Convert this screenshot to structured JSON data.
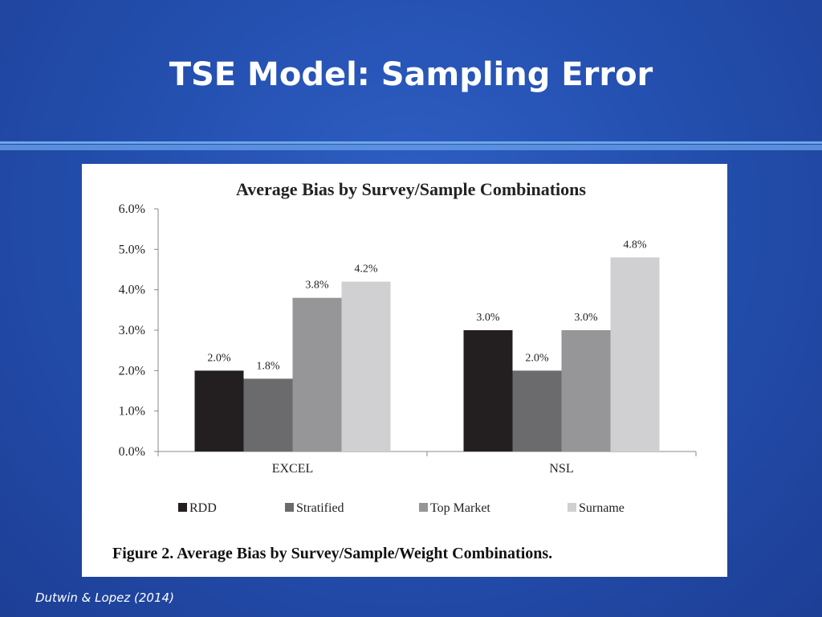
{
  "slide": {
    "title": "TSE Model: Sampling Error",
    "source": "Dutwin & Lopez (2014)"
  },
  "colors": {
    "background": "#2450b0",
    "title": "#ffffff",
    "rule": "#6fa6ec",
    "panel": "#ffffff"
  },
  "chart_data": {
    "type": "bar",
    "title": "Average Bias by Survey/Sample Combinations",
    "caption": "Figure 2.  Average Bias by Survey/Sample/Weight Combinations.",
    "categories": [
      "EXCEL",
      "NSL"
    ],
    "series": [
      {
        "name": "RDD",
        "values": [
          2.0,
          3.0
        ],
        "labels": [
          "2.0%",
          "3.0%"
        ],
        "color": "#231f20"
      },
      {
        "name": "Stratified",
        "values": [
          1.8,
          2.0
        ],
        "labels": [
          "1.8%",
          "2.0%"
        ],
        "color": "#6b6b6d"
      },
      {
        "name": "Top Market",
        "values": [
          3.8,
          3.0
        ],
        "labels": [
          "3.8%",
          "3.0%"
        ],
        "color": "#969698"
      },
      {
        "name": "Surname",
        "values": [
          4.2,
          4.8
        ],
        "labels": [
          "4.2%",
          "4.8%"
        ],
        "color": "#d0d0d2"
      }
    ],
    "yticks": [
      "0.0%",
      "1.0%",
      "2.0%",
      "3.0%",
      "4.0%",
      "5.0%",
      "6.0%"
    ],
    "ylim": [
      0,
      6
    ],
    "xlabel": "",
    "ylabel": "",
    "grid": false,
    "legend_position": "bottom"
  }
}
